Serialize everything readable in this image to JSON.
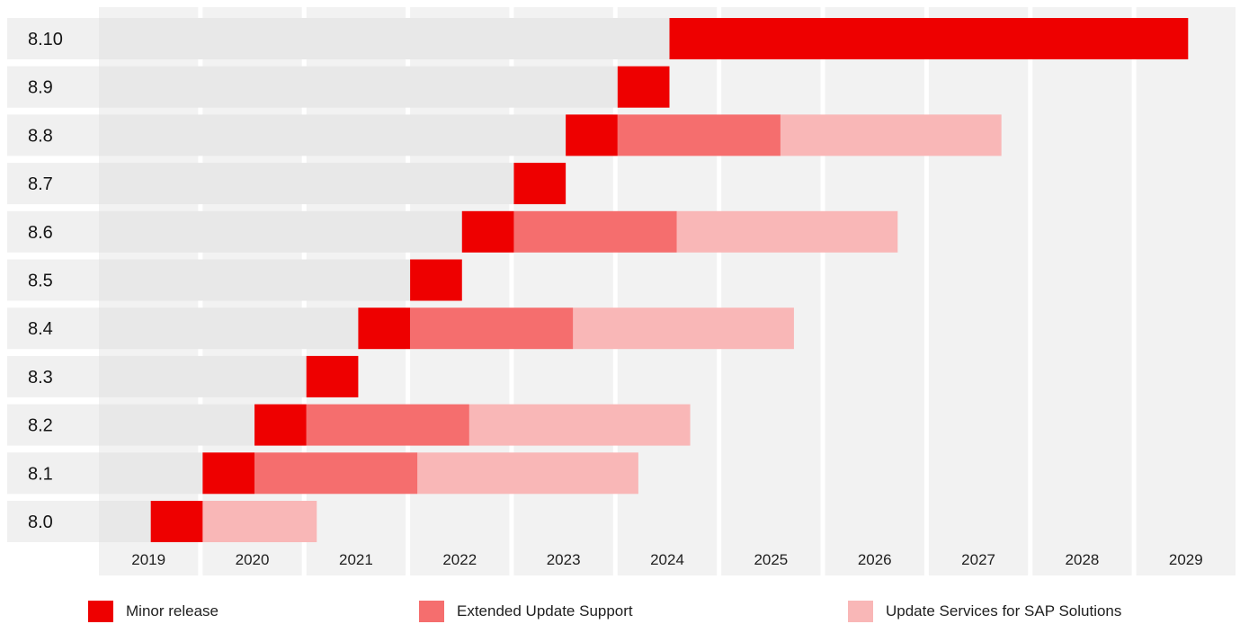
{
  "chart_data": {
    "type": "bar",
    "orientation": "horizontal-gantt",
    "colors": {
      "minor_release": "#ee0000",
      "extended_update_support": "#f56e6e",
      "update_services_sap": "#f9b7b7",
      "row_label_background": "#f0f0f0",
      "track_background": "#e8e8e8",
      "column_background": "#f2f2f2"
    },
    "x_axis": {
      "ticks": [
        "2019",
        "2020",
        "2021",
        "2022",
        "2023",
        "2024",
        "2025",
        "2026",
        "2027",
        "2028",
        "2029"
      ],
      "range": [
        2018.5,
        2029.5
      ]
    },
    "legend": [
      {
        "key": "minor_release",
        "label": "Minor release"
      },
      {
        "key": "extended_update_support",
        "label": "Extended Update Support"
      },
      {
        "key": "update_services_sap",
        "label": "Update Services for SAP Solutions"
      }
    ],
    "legend_position": "bottom",
    "releases": [
      {
        "version": "8.10",
        "minor_release": [
          2024.0,
          2029.0
        ],
        "extended_update_support": null,
        "update_services_sap": null
      },
      {
        "version": "8.9",
        "minor_release": [
          2023.5,
          2024.0
        ],
        "extended_update_support": null,
        "update_services_sap": null
      },
      {
        "version": "8.8",
        "minor_release": [
          2023.0,
          2023.5
        ],
        "extended_update_support": [
          2023.5,
          2025.07
        ],
        "update_services_sap": [
          2025.07,
          2027.2
        ]
      },
      {
        "version": "8.7",
        "minor_release": [
          2022.5,
          2023.0
        ],
        "extended_update_support": null,
        "update_services_sap": null
      },
      {
        "version": "8.6",
        "minor_release": [
          2022.0,
          2022.5
        ],
        "extended_update_support": [
          2022.5,
          2024.07
        ],
        "update_services_sap": [
          2024.07,
          2026.2
        ]
      },
      {
        "version": "8.5",
        "minor_release": [
          2021.5,
          2022.0
        ],
        "extended_update_support": null,
        "update_services_sap": null
      },
      {
        "version": "8.4",
        "minor_release": [
          2021.0,
          2021.5
        ],
        "extended_update_support": [
          2021.5,
          2023.07
        ],
        "update_services_sap": [
          2023.07,
          2025.2
        ]
      },
      {
        "version": "8.3",
        "minor_release": [
          2020.5,
          2021.0
        ],
        "extended_update_support": null,
        "update_services_sap": null
      },
      {
        "version": "8.2",
        "minor_release": [
          2020.0,
          2020.5
        ],
        "extended_update_support": [
          2020.5,
          2022.07
        ],
        "update_services_sap": [
          2022.07,
          2024.2
        ]
      },
      {
        "version": "8.1",
        "minor_release": [
          2019.5,
          2020.0
        ],
        "extended_update_support": [
          2020.0,
          2021.57
        ],
        "update_services_sap": [
          2021.57,
          2023.7
        ]
      },
      {
        "version": "8.0",
        "minor_release": [
          2019.0,
          2019.5
        ],
        "extended_update_support": null,
        "update_services_sap": [
          2019.5,
          2020.6
        ]
      }
    ]
  }
}
